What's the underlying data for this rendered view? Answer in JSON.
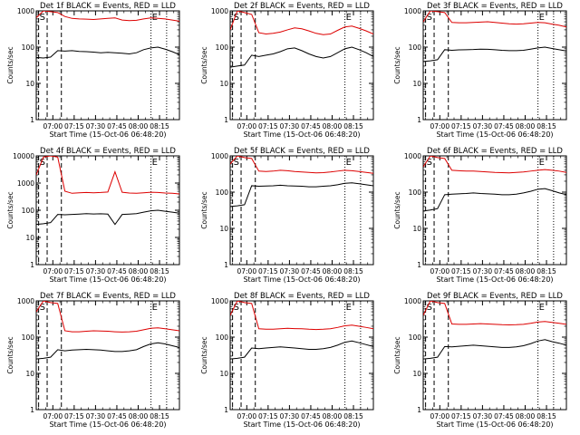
{
  "chart_data": [
    {
      "type": "line",
      "title": "Det 1f BLACK = Events, RED = LLD",
      "xlabel": "Start Time (15-Oct-06 06:48:20)",
      "ylabel": "Counts/sec",
      "yscale": "log",
      "ylim": [
        1,
        1000
      ],
      "xlim": [
        "06:48:20",
        "08:29:00"
      ],
      "x_tick_labels": [
        "07:00",
        "07:15",
        "07:30",
        "07:45",
        "08:00",
        "08:15"
      ],
      "y_tick_labels": [
        "1",
        "10",
        "100",
        "1000"
      ],
      "markers": [
        {
          "label": "S",
          "time": "06:50:00",
          "style": "dashed"
        },
        {
          "label": "",
          "time": "06:56:00",
          "style": "dashed"
        },
        {
          "label": "",
          "time": "07:06:00",
          "style": "dashed"
        },
        {
          "label": "E",
          "time": "08:09:00",
          "style": "dotted"
        },
        {
          "label": "",
          "time": "08:20:00",
          "style": "dotted"
        }
      ],
      "series": [
        {
          "color": "#dd0000",
          "values": [
            650,
            1000,
            950,
            900,
            700,
            620,
            600,
            590,
            580,
            600,
            620,
            640,
            560,
            540,
            550,
            600,
            640,
            620,
            600,
            560,
            520
          ]
        },
        {
          "color": "#000000",
          "values": [
            52,
            50,
            53,
            80,
            78,
            80,
            76,
            75,
            73,
            70,
            72,
            70,
            68,
            65,
            70,
            85,
            95,
            100,
            88,
            75,
            62
          ]
        }
      ]
    },
    {
      "type": "line",
      "title": "Det 2f BLACK = Events, RED = LLD",
      "xlabel": "Start Time (15-Oct-06 06:48:20)",
      "ylabel": "Counts/sec",
      "yscale": "log",
      "ylim": [
        1,
        1000
      ],
      "xlim": [
        "06:48:20",
        "08:29:00"
      ],
      "x_tick_labels": [
        "07:00",
        "07:15",
        "07:30",
        "07:45",
        "08:00",
        "08:15"
      ],
      "y_tick_labels": [
        "1",
        "10",
        "100",
        "1000"
      ],
      "markers": [
        {
          "label": "S",
          "time": "06:50:00",
          "style": "dashed"
        },
        {
          "label": "",
          "time": "06:56:00",
          "style": "dashed"
        },
        {
          "label": "",
          "time": "07:06:00",
          "style": "dashed"
        },
        {
          "label": "E",
          "time": "08:09:00",
          "style": "dotted"
        },
        {
          "label": "",
          "time": "08:20:00",
          "style": "dotted"
        }
      ],
      "series": [
        {
          "color": "#dd0000",
          "values": [
            300,
            1000,
            900,
            800,
            250,
            230,
            240,
            260,
            300,
            340,
            320,
            280,
            240,
            220,
            230,
            290,
            360,
            380,
            330,
            280,
            230
          ]
        },
        {
          "color": "#000000",
          "values": [
            28,
            30,
            32,
            60,
            55,
            60,
            65,
            75,
            90,
            95,
            80,
            65,
            55,
            50,
            55,
            70,
            90,
            100,
            85,
            70,
            55
          ]
        }
      ]
    },
    {
      "type": "line",
      "title": "Det 3f BLACK = Events, RED = LLD",
      "xlabel": "Start Time (15-Oct-06 06:48:20)",
      "ylabel": "Counts/sec",
      "yscale": "log",
      "ylim": [
        1,
        1000
      ],
      "xlim": [
        "06:48:20",
        "08:29:00"
      ],
      "x_tick_labels": [
        "07:00",
        "07:15",
        "07:30",
        "07:45",
        "08:00",
        "08:15"
      ],
      "y_tick_labels": [
        "1",
        "10",
        "100",
        "1000"
      ],
      "markers": [
        {
          "label": "S",
          "time": "06:50:00",
          "style": "dashed"
        },
        {
          "label": "",
          "time": "06:56:00",
          "style": "dashed"
        },
        {
          "label": "",
          "time": "07:06:00",
          "style": "dashed"
        },
        {
          "label": "E",
          "time": "08:09:00",
          "style": "dotted"
        },
        {
          "label": "",
          "time": "08:20:00",
          "style": "dotted"
        }
      ],
      "series": [
        {
          "color": "#dd0000",
          "values": [
            500,
            1000,
            950,
            900,
            480,
            470,
            470,
            480,
            490,
            500,
            480,
            460,
            440,
            430,
            440,
            460,
            480,
            470,
            430,
            400,
            360
          ]
        },
        {
          "color": "#000000",
          "values": [
            40,
            42,
            45,
            85,
            82,
            84,
            85,
            86,
            88,
            87,
            85,
            82,
            80,
            80,
            82,
            88,
            95,
            100,
            92,
            85,
            78
          ]
        }
      ]
    },
    {
      "type": "line",
      "title": "Det 4f BLACK = Events, RED = LLD",
      "xlabel": "Start Time (15-Oct-06 06:48:20)",
      "ylabel": "Counts/sec",
      "yscale": "log",
      "ylim": [
        1,
        10000
      ],
      "xlim": [
        "06:48:20",
        "08:29:00"
      ],
      "x_tick_labels": [
        "07:00",
        "07:15",
        "07:30",
        "07:45",
        "08:00",
        "08:15"
      ],
      "y_tick_labels": [
        "1",
        "10",
        "100",
        "1000",
        "10000"
      ],
      "markers": [
        {
          "label": "S",
          "time": "06:50:00",
          "style": "dashed"
        },
        {
          "label": "",
          "time": "06:56:00",
          "style": "dashed"
        },
        {
          "label": "",
          "time": "07:06:00",
          "style": "dashed"
        },
        {
          "label": "E",
          "time": "08:09:00",
          "style": "dotted"
        },
        {
          "label": "",
          "time": "08:20:00",
          "style": "dotted"
        }
      ],
      "series": [
        {
          "color": "#dd0000",
          "values": [
            2000,
            9000,
            10000,
            9000,
            500,
            420,
            440,
            450,
            440,
            450,
            470,
            2600,
            460,
            430,
            420,
            440,
            460,
            450,
            430,
            420,
            400
          ]
        },
        {
          "color": "#000000",
          "values": [
            30,
            32,
            35,
            70,
            68,
            70,
            72,
            75,
            73,
            74,
            72,
            30,
            70,
            72,
            75,
            85,
            95,
            100,
            92,
            85,
            78
          ]
        }
      ]
    },
    {
      "type": "line",
      "title": "Det 5f BLACK = Events, RED = LLD",
      "xlabel": "Start Time (15-Oct-06 06:48:20)",
      "ylabel": "Counts/sec",
      "yscale": "log",
      "ylim": [
        1,
        1000
      ],
      "xlim": [
        "06:48:20",
        "08:29:00"
      ],
      "x_tick_labels": [
        "07:00",
        "07:15",
        "07:30",
        "07:45",
        "08:00",
        "08:15"
      ],
      "y_tick_labels": [
        "1",
        "10",
        "100",
        "1000"
      ],
      "markers": [
        {
          "label": "S",
          "time": "06:50:00",
          "style": "dashed"
        },
        {
          "label": "",
          "time": "06:56:00",
          "style": "dashed"
        },
        {
          "label": "",
          "time": "07:06:00",
          "style": "dashed"
        },
        {
          "label": "E",
          "time": "08:09:00",
          "style": "dotted"
        },
        {
          "label": "",
          "time": "08:20:00",
          "style": "dotted"
        }
      ],
      "series": [
        {
          "color": "#dd0000",
          "values": [
            600,
            1000,
            900,
            850,
            380,
            370,
            380,
            400,
            390,
            370,
            360,
            350,
            340,
            345,
            360,
            380,
            400,
            390,
            370,
            350,
            330
          ]
        },
        {
          "color": "#000000",
          "values": [
            40,
            42,
            45,
            150,
            145,
            148,
            150,
            155,
            150,
            148,
            145,
            140,
            140,
            145,
            150,
            160,
            175,
            180,
            170,
            160,
            150
          ]
        }
      ]
    },
    {
      "type": "line",
      "title": "Det 6f BLACK = Events, RED = LLD",
      "xlabel": "Start Time (15-Oct-06 06:48:20)",
      "ylabel": "Counts/sec",
      "yscale": "log",
      "ylim": [
        1,
        1000
      ],
      "xlim": [
        "06:48:20",
        "08:29:00"
      ],
      "x_tick_labels": [
        "07:00",
        "07:15",
        "07:30",
        "07:45",
        "08:00",
        "08:15"
      ],
      "y_tick_labels": [
        "1",
        "10",
        "100",
        "1000"
      ],
      "markers": [
        {
          "label": "S",
          "time": "06:50:00",
          "style": "dashed"
        },
        {
          "label": "",
          "time": "06:56:00",
          "style": "dashed"
        },
        {
          "label": "",
          "time": "07:06:00",
          "style": "dashed"
        },
        {
          "label": "E",
          "time": "08:09:00",
          "style": "dotted"
        },
        {
          "label": "",
          "time": "08:20:00",
          "style": "dotted"
        }
      ],
      "series": [
        {
          "color": "#dd0000",
          "values": [
            500,
            1000,
            900,
            850,
            400,
            390,
            380,
            380,
            370,
            360,
            350,
            345,
            340,
            350,
            360,
            380,
            400,
            420,
            400,
            380,
            350
          ]
        },
        {
          "color": "#000000",
          "values": [
            30,
            32,
            35,
            85,
            88,
            90,
            92,
            95,
            92,
            90,
            88,
            85,
            85,
            88,
            95,
            105,
            120,
            125,
            110,
            95,
            85
          ]
        }
      ]
    },
    {
      "type": "line",
      "title": "Det 7f BLACK = Events, RED = LLD",
      "xlabel": "Start Time (15-Oct-06 06:48:20)",
      "ylabel": "Counts/sec",
      "yscale": "log",
      "ylim": [
        1,
        1000
      ],
      "xlim": [
        "06:48:20",
        "08:29:00"
      ],
      "x_tick_labels": [
        "07:00",
        "07:15",
        "07:30",
        "07:45",
        "08:00",
        "08:15"
      ],
      "y_tick_labels": [
        "1",
        "10",
        "100",
        "1000"
      ],
      "markers": [
        {
          "label": "S",
          "time": "06:50:00",
          "style": "dashed"
        },
        {
          "label": "",
          "time": "06:56:00",
          "style": "dashed"
        },
        {
          "label": "",
          "time": "07:06:00",
          "style": "dashed"
        },
        {
          "label": "E",
          "time": "08:09:00",
          "style": "dotted"
        },
        {
          "label": "",
          "time": "08:20:00",
          "style": "dotted"
        }
      ],
      "series": [
        {
          "color": "#dd0000",
          "values": [
            500,
            1000,
            900,
            850,
            150,
            140,
            140,
            145,
            150,
            148,
            145,
            140,
            138,
            140,
            145,
            160,
            175,
            180,
            170,
            160,
            150
          ]
        },
        {
          "color": "#000000",
          "values": [
            25,
            26,
            28,
            45,
            42,
            44,
            45,
            46,
            45,
            44,
            42,
            40,
            40,
            42,
            45,
            55,
            65,
            70,
            65,
            58,
            52
          ]
        }
      ]
    },
    {
      "type": "line",
      "title": "Det 8f BLACK = Events, RED = LLD",
      "xlabel": "Start Time (15-Oct-06 06:48:20)",
      "ylabel": "Counts/sec",
      "yscale": "log",
      "ylim": [
        1,
        1000
      ],
      "xlim": [
        "06:48:20",
        "08:29:00"
      ],
      "x_tick_labels": [
        "07:00",
        "07:15",
        "07:30",
        "07:45",
        "08:00",
        "08:15"
      ],
      "y_tick_labels": [
        "1",
        "10",
        "100",
        "1000"
      ],
      "markers": [
        {
          "label": "S",
          "time": "06:50:00",
          "style": "dashed"
        },
        {
          "label": "",
          "time": "06:56:00",
          "style": "dashed"
        },
        {
          "label": "",
          "time": "07:06:00",
          "style": "dashed"
        },
        {
          "label": "E",
          "time": "08:09:00",
          "style": "dotted"
        },
        {
          "label": "",
          "time": "08:20:00",
          "style": "dotted"
        }
      ],
      "series": [
        {
          "color": "#dd0000",
          "values": [
            400,
            1000,
            900,
            850,
            170,
            165,
            165,
            170,
            175,
            172,
            170,
            165,
            162,
            165,
            170,
            185,
            205,
            215,
            200,
            185,
            170
          ]
        },
        {
          "color": "#000000",
          "values": [
            25,
            26,
            28,
            50,
            48,
            50,
            52,
            54,
            52,
            50,
            48,
            46,
            46,
            48,
            52,
            60,
            72,
            78,
            70,
            62,
            55
          ]
        }
      ]
    },
    {
      "type": "line",
      "title": "Det 9f BLACK = Events, RED = LLD",
      "xlabel": "Start Time (15-Oct-06 06:48:20)",
      "ylabel": "Counts/sec",
      "yscale": "log",
      "ylim": [
        1,
        1000
      ],
      "xlim": [
        "06:48:20",
        "08:29:00"
      ],
      "x_tick_labels": [
        "07:00",
        "07:15",
        "07:30",
        "07:45",
        "08:00",
        "08:15"
      ],
      "y_tick_labels": [
        "1",
        "10",
        "100",
        "1000"
      ],
      "markers": [
        {
          "label": "S",
          "time": "06:50:00",
          "style": "dashed"
        },
        {
          "label": "",
          "time": "06:56:00",
          "style": "dashed"
        },
        {
          "label": "",
          "time": "07:06:00",
          "style": "dashed"
        },
        {
          "label": "E",
          "time": "08:09:00",
          "style": "dotted"
        },
        {
          "label": "",
          "time": "08:20:00",
          "style": "dotted"
        }
      ],
      "series": [
        {
          "color": "#dd0000",
          "values": [
            400,
            1000,
            900,
            850,
            230,
            225,
            225,
            230,
            235,
            230,
            225,
            220,
            218,
            220,
            225,
            240,
            260,
            270,
            255,
            240,
            225
          ]
        },
        {
          "color": "#000000",
          "values": [
            25,
            26,
            28,
            55,
            54,
            56,
            58,
            60,
            58,
            56,
            54,
            52,
            52,
            54,
            58,
            66,
            78,
            85,
            75,
            68,
            60
          ]
        }
      ]
    }
  ]
}
